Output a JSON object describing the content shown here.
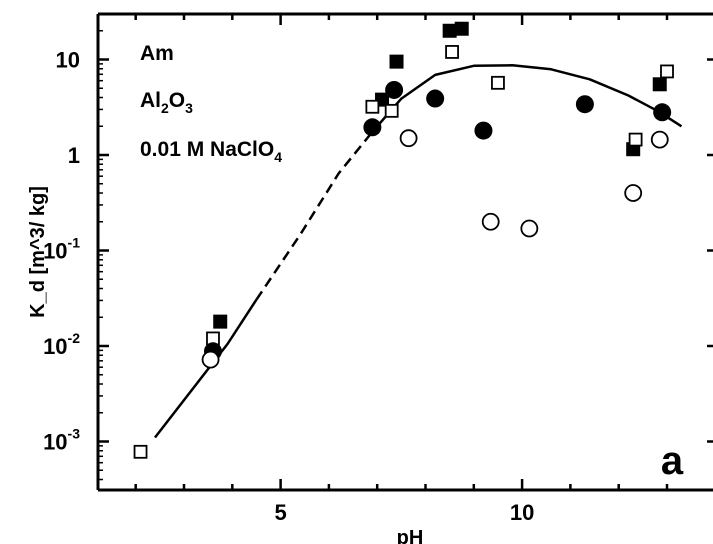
{
  "chart_data": {
    "type": "scatter",
    "title": "",
    "xlabel": "pH",
    "ylabel": "K_d [m^3/ kg]",
    "panel_label": "a",
    "annotations": [
      {
        "id": "element",
        "base": "Am",
        "sub": "",
        "tail": ""
      },
      {
        "id": "sorbent",
        "base": "Al",
        "sub": "2",
        "tail": "O",
        "sub2": "3"
      },
      {
        "id": "electrolyte",
        "base": "0.01 M NaClO",
        "sub": "4",
        "tail": ""
      }
    ],
    "xlim": [
      1.0,
      13.6
    ],
    "ylim_log10": [
      -3.5,
      1.5
    ],
    "x_ticks": [
      {
        "value": 5,
        "label": "5"
      },
      {
        "value": 10,
        "label": "10"
      }
    ],
    "y_ticks": [
      {
        "value": 1,
        "base": "10",
        "sup": ""
      },
      {
        "value": 0,
        "base": "1",
        "sup": ""
      },
      {
        "value": -1,
        "base": "10",
        "sup": "-1"
      },
      {
        "value": -2,
        "base": "10",
        "sup": "-2"
      },
      {
        "value": -3,
        "base": "10",
        "sup": "-3"
      }
    ],
    "grid": false,
    "series": [
      {
        "marker": "filled-square",
        "color": "#000000",
        "points": [
          [
            3.75,
            0.018
          ],
          [
            7.1,
            3.8
          ],
          [
            7.4,
            9.5
          ],
          [
            8.5,
            20
          ],
          [
            8.75,
            21
          ],
          [
            12.3,
            1.15
          ],
          [
            12.85,
            5.5
          ]
        ]
      },
      {
        "marker": "open-square",
        "color": "#000000",
        "points": [
          [
            2.1,
            0.00078
          ],
          [
            3.6,
            0.012
          ],
          [
            6.9,
            3.2
          ],
          [
            7.3,
            2.9
          ],
          [
            8.55,
            12
          ],
          [
            9.5,
            5.7
          ],
          [
            12.35,
            1.45
          ],
          [
            13.0,
            7.5
          ]
        ]
      },
      {
        "marker": "filled-circle",
        "color": "#000000",
        "points": [
          [
            3.6,
            0.0088
          ],
          [
            6.9,
            1.95
          ],
          [
            7.35,
            4.8
          ],
          [
            8.2,
            3.9
          ],
          [
            9.2,
            1.8
          ],
          [
            11.3,
            3.4
          ],
          [
            12.9,
            2.8
          ]
        ]
      },
      {
        "marker": "open-circle",
        "color": "#000000",
        "points": [
          [
            3.55,
            0.0072
          ],
          [
            7.65,
            1.5
          ],
          [
            9.35,
            0.2
          ],
          [
            10.15,
            0.17
          ],
          [
            12.3,
            0.4
          ],
          [
            12.85,
            1.45
          ]
        ]
      }
    ],
    "fit_curve": {
      "color": "#000000",
      "solid_low": [
        [
          2.4,
          0.0011
        ],
        [
          3.9,
          0.0105
        ],
        [
          4.5,
          0.0305
        ]
      ],
      "dashed": [
        [
          4.5,
          0.0305
        ],
        [
          5.4,
          0.145
        ],
        [
          6.2,
          0.64
        ],
        [
          6.9,
          1.75
        ]
      ],
      "solid_high": [
        [
          6.9,
          1.75
        ],
        [
          7.5,
          3.9
        ],
        [
          8.2,
          6.9
        ],
        [
          9.0,
          8.6
        ],
        [
          9.8,
          8.7
        ],
        [
          10.6,
          7.9
        ],
        [
          11.4,
          6.2
        ],
        [
          12.2,
          4.2
        ],
        [
          12.8,
          2.9
        ],
        [
          13.3,
          2.0
        ]
      ]
    }
  }
}
